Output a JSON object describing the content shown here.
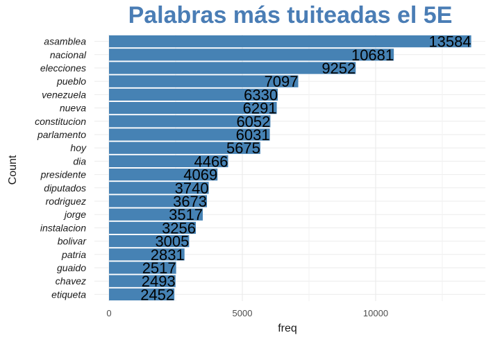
{
  "chart_data": {
    "type": "bar",
    "orientation": "horizontal",
    "title": "Palabras más tuiteadas el 5E",
    "xlabel": "freq",
    "ylabel": "Count",
    "categories": [
      "asamblea",
      "nacional",
      "elecciones",
      "pueblo",
      "venezuela",
      "nueva",
      "constitucion",
      "parlamento",
      "hoy",
      "dia",
      "presidente",
      "diputados",
      "rodriguez",
      "jorge",
      "instalacion",
      "bolivar",
      "patria",
      "guaido",
      "chavez",
      "etiqueta"
    ],
    "values": [
      13584,
      10681,
      9252,
      7097,
      6330,
      6291,
      6052,
      6031,
      5675,
      4466,
      4069,
      3740,
      3673,
      3517,
      3256,
      3005,
      2831,
      2517,
      2493,
      2452
    ],
    "value_labels": [
      "13584",
      "10681",
      "9252",
      "7097",
      "6330",
      "6291",
      "6052",
      "6031",
      "5675",
      "4466",
      "4069",
      "3740",
      "3673",
      "3517",
      "3256",
      "3005",
      "2831",
      "2517",
      "2493",
      "2452"
    ],
    "x_ticks": [
      0,
      5000,
      10000
    ],
    "x_tick_labels": [
      "0",
      "5000",
      "10000"
    ],
    "xlim": [
      0,
      14000
    ],
    "grid": true,
    "bar_color": "#4682b4",
    "title_color": "#4a7db5",
    "grid_color": "#ebebeb"
  }
}
